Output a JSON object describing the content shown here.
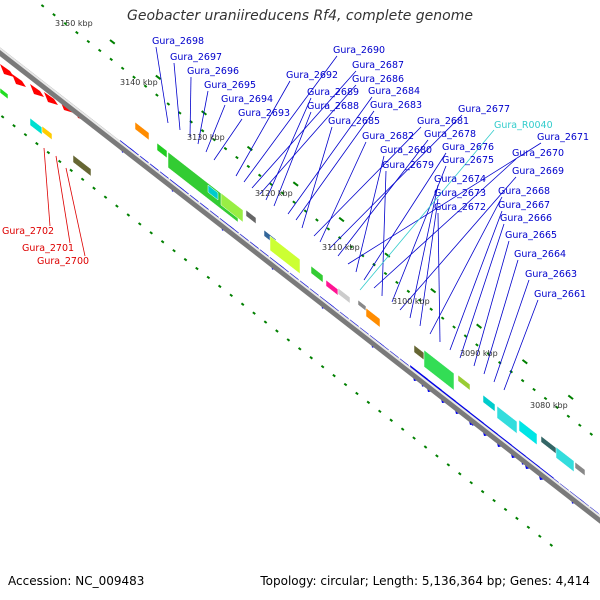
{
  "title": "Geobacter uraniireducens Rf4, complete genome",
  "footer": {
    "accession": "Accession: NC_009483",
    "summary": "Topology: circular; Length: 5,136,364 bp; Genes: 4,414"
  },
  "colors": {
    "backbone": "#888888",
    "tick": "#008000",
    "gene_arrow": "#0000ee",
    "label_blue": "#0000cc",
    "label_red": "#dd0000",
    "label_rna": "#33cccc"
  },
  "scale_labels": [
    "3150 kbp",
    "3140 kbp",
    "3130 kbp",
    "3120 kbp",
    "3110 kbp",
    "3100 kbp",
    "3090 kbp",
    "3080 kbp"
  ],
  "gene_labels_blue": [
    "Gura_2698",
    "Gura_2697",
    "Gura_2696",
    "Gura_2695",
    "Gura_2694",
    "Gura_2693",
    "Gura_2692",
    "Gura_2690",
    "Gura_2687",
    "Gura_2686",
    "Gura_2689",
    "Gura_2688",
    "Gura_2684",
    "Gura_2683",
    "Gura_2685",
    "Gura_2681",
    "Gura_2682",
    "Gura_2677",
    "Gura_2678",
    "Gura_2671",
    "Gura_2680",
    "Gura_2676",
    "Gura_2670",
    "Gura_2679",
    "Gura_2675",
    "Gura_2669",
    "Gura_2674",
    "Gura_2673",
    "Gura_2668",
    "Gura_2672",
    "Gura_2667",
    "Gura_2666",
    "Gura_2665",
    "Gura_2664",
    "Gura_2663",
    "Gura_2661"
  ],
  "gene_labels_rna": [
    "Gura_R0040"
  ],
  "gene_labels_red": [
    "Gura_2702",
    "Gura_2701",
    "Gura_2700"
  ]
}
